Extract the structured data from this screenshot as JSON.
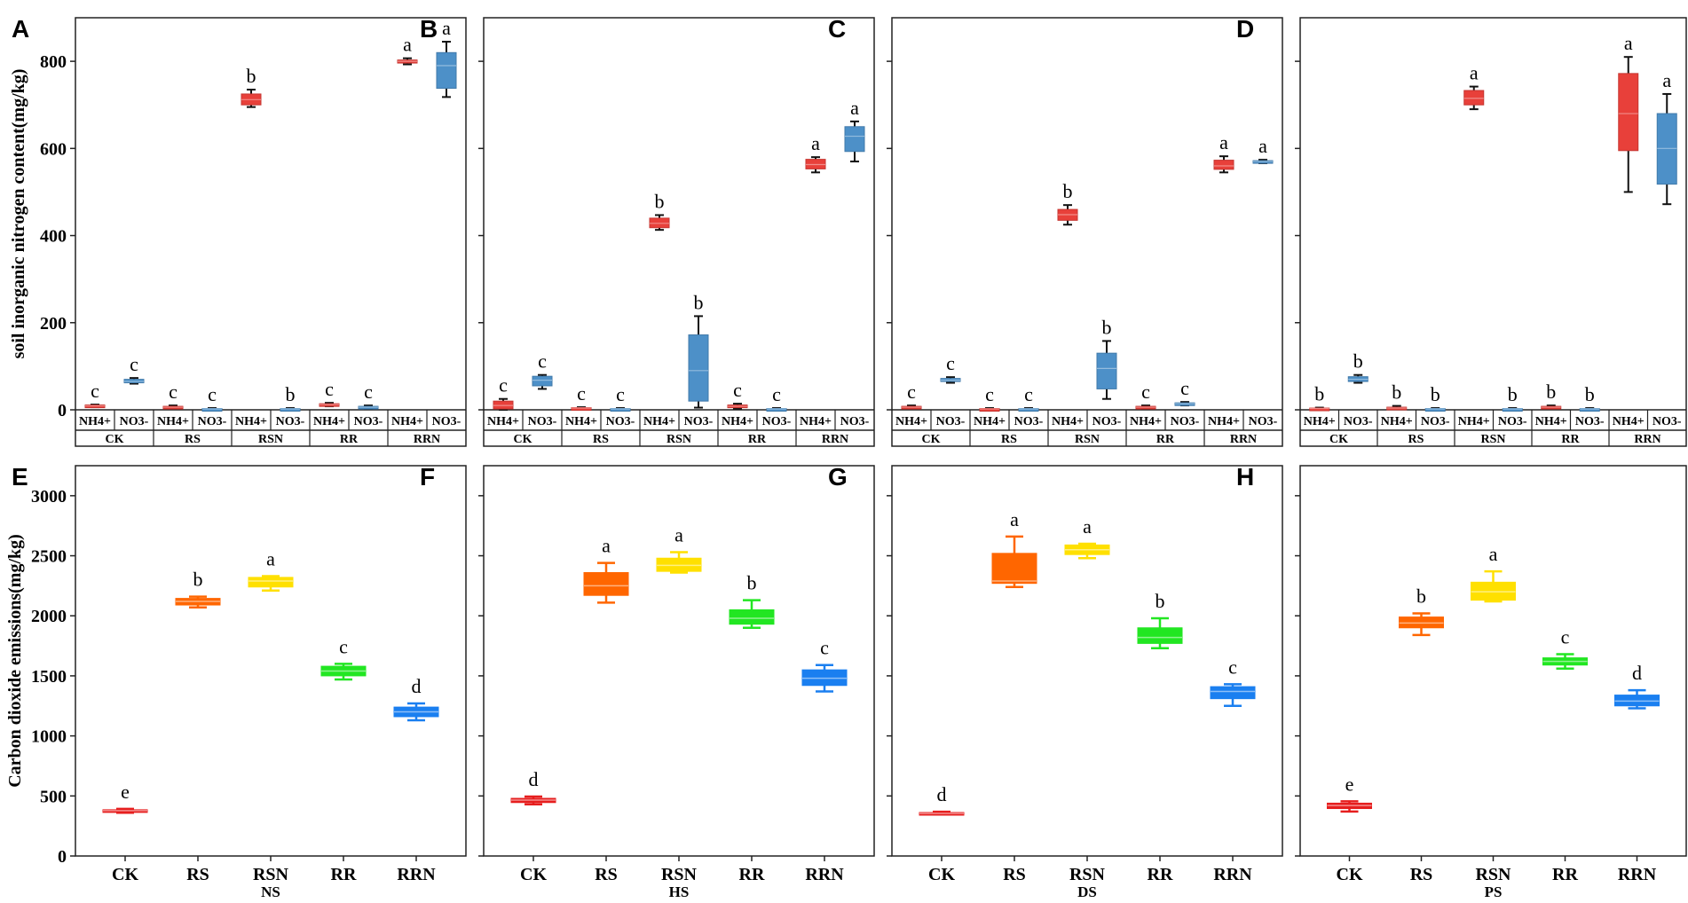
{
  "figure": {
    "panel_letters": [
      "A",
      "B",
      "C",
      "D",
      "E",
      "F",
      "G",
      "H"
    ],
    "colors": {
      "nh4": "#e8403a",
      "no3": "#4d90c8",
      "CK": "#e61e1e",
      "RS": "#ff6600",
      "RSN": "#ffe000",
      "RR": "#22e622",
      "RRN": "#1a7ff0"
    }
  },
  "chart_data": [
    {
      "type": "box",
      "panel": "A",
      "ylabel": "soil inorganic nitrogen content(mg/kg)",
      "xlabel": "",
      "ylim": [
        0,
        900
      ],
      "yticks": [
        0,
        200,
        400,
        600,
        800
      ],
      "groups": [
        "CK",
        "RS",
        "RSN",
        "RR",
        "RRN"
      ],
      "subcategories": [
        "NH4+",
        "NO3-"
      ],
      "boxes": [
        {
          "group": "CK",
          "sub": "NH4+",
          "min": 6,
          "q1": 8,
          "median": 9,
          "q3": 11,
          "max": 12,
          "label": "c"
        },
        {
          "group": "CK",
          "sub": "NO3-",
          "min": 60,
          "q1": 62,
          "median": 65,
          "q3": 70,
          "max": 73,
          "label": "c"
        },
        {
          "group": "RS",
          "sub": "NH4+",
          "min": 3,
          "q1": 5,
          "median": 6,
          "q3": 8,
          "max": 10,
          "label": "c"
        },
        {
          "group": "RS",
          "sub": "NO3-",
          "min": 0,
          "q1": 1,
          "median": 2,
          "q3": 3,
          "max": 4,
          "label": "c"
        },
        {
          "group": "RSN",
          "sub": "NH4+",
          "min": 695,
          "q1": 700,
          "median": 712,
          "q3": 725,
          "max": 735,
          "label": "b"
        },
        {
          "group": "RSN",
          "sub": "NO3-",
          "min": 0,
          "q1": 1,
          "median": 2,
          "q3": 3,
          "max": 4,
          "label": "b"
        },
        {
          "group": "RR",
          "sub": "NH4+",
          "min": 8,
          "q1": 10,
          "median": 12,
          "q3": 14,
          "max": 16,
          "label": "c"
        },
        {
          "group": "RR",
          "sub": "NO3-",
          "min": 2,
          "q1": 4,
          "median": 6,
          "q3": 8,
          "max": 10,
          "label": "c"
        },
        {
          "group": "RRN",
          "sub": "NH4+",
          "min": 793,
          "q1": 796,
          "median": 800,
          "q3": 803,
          "max": 807,
          "label": "a"
        },
        {
          "group": "RRN",
          "sub": "NO3-",
          "min": 718,
          "q1": 738,
          "median": 790,
          "q3": 820,
          "max": 845,
          "label": "a"
        }
      ]
    },
    {
      "type": "box",
      "panel": "B",
      "ylim": [
        0,
        900
      ],
      "yticks": [
        0,
        200,
        400,
        600,
        800
      ],
      "groups": [
        "CK",
        "RS",
        "RSN",
        "RR",
        "RRN"
      ],
      "subcategories": [
        "NH4+",
        "NO3-"
      ],
      "boxes": [
        {
          "group": "CK",
          "sub": "NH4+",
          "min": 0,
          "q1": 2,
          "median": 10,
          "q3": 20,
          "max": 25,
          "label": "c"
        },
        {
          "group": "CK",
          "sub": "NO3-",
          "min": 48,
          "q1": 55,
          "median": 68,
          "q3": 77,
          "max": 80,
          "label": "c"
        },
        {
          "group": "RS",
          "sub": "NH4+",
          "min": 2,
          "q1": 3,
          "median": 4,
          "q3": 5,
          "max": 6,
          "label": "c"
        },
        {
          "group": "RS",
          "sub": "NO3-",
          "min": 0,
          "q1": 1,
          "median": 2,
          "q3": 3,
          "max": 4,
          "label": "c"
        },
        {
          "group": "RSN",
          "sub": "NH4+",
          "min": 413,
          "q1": 418,
          "median": 428,
          "q3": 440,
          "max": 447,
          "label": "b"
        },
        {
          "group": "RSN",
          "sub": "NO3-",
          "min": 5,
          "q1": 20,
          "median": 90,
          "q3": 172,
          "max": 215,
          "label": "b"
        },
        {
          "group": "RR",
          "sub": "NH4+",
          "min": 3,
          "q1": 5,
          "median": 8,
          "q3": 11,
          "max": 14,
          "label": "c"
        },
        {
          "group": "RR",
          "sub": "NO3-",
          "min": 0,
          "q1": 1,
          "median": 2,
          "q3": 3,
          "max": 4,
          "label": "c"
        },
        {
          "group": "RRN",
          "sub": "NH4+",
          "min": 545,
          "q1": 553,
          "median": 563,
          "q3": 575,
          "max": 580,
          "label": "a"
        },
        {
          "group": "RRN",
          "sub": "NO3-",
          "min": 570,
          "q1": 593,
          "median": 628,
          "q3": 650,
          "max": 662,
          "label": "a"
        }
      ]
    },
    {
      "type": "box",
      "panel": "C",
      "ylim": [
        0,
        900
      ],
      "yticks": [
        0,
        200,
        400,
        600,
        800
      ],
      "groups": [
        "CK",
        "RS",
        "RSN",
        "RR",
        "RRN"
      ],
      "subcategories": [
        "NH4+",
        "NO3-"
      ],
      "boxes": [
        {
          "group": "CK",
          "sub": "NH4+",
          "min": 3,
          "q1": 5,
          "median": 6,
          "q3": 8,
          "max": 10,
          "label": "c"
        },
        {
          "group": "CK",
          "sub": "NO3-",
          "min": 62,
          "q1": 65,
          "median": 68,
          "q3": 72,
          "max": 75,
          "label": "c"
        },
        {
          "group": "RS",
          "sub": "NH4+",
          "min": 0,
          "q1": 1,
          "median": 2,
          "q3": 3,
          "max": 4,
          "label": "c"
        },
        {
          "group": "RS",
          "sub": "NO3-",
          "min": 0,
          "q1": 1,
          "median": 2,
          "q3": 3,
          "max": 4,
          "label": "c"
        },
        {
          "group": "RSN",
          "sub": "NH4+",
          "min": 425,
          "q1": 435,
          "median": 448,
          "q3": 460,
          "max": 470,
          "label": "b"
        },
        {
          "group": "RSN",
          "sub": "NO3-",
          "min": 25,
          "q1": 48,
          "median": 95,
          "q3": 130,
          "max": 158,
          "label": "b"
        },
        {
          "group": "RR",
          "sub": "NH4+",
          "min": 2,
          "q1": 4,
          "median": 6,
          "q3": 8,
          "max": 10,
          "label": "c"
        },
        {
          "group": "RR",
          "sub": "NO3-",
          "min": 10,
          "q1": 12,
          "median": 14,
          "q3": 16,
          "max": 18,
          "label": "c"
        },
        {
          "group": "RRN",
          "sub": "NH4+",
          "min": 545,
          "q1": 552,
          "median": 560,
          "q3": 573,
          "max": 582,
          "label": "a"
        },
        {
          "group": "RRN",
          "sub": "NO3-",
          "min": 566,
          "q1": 568,
          "median": 570,
          "q3": 572,
          "max": 574,
          "label": "a"
        }
      ]
    },
    {
      "type": "box",
      "panel": "D",
      "ylim": [
        0,
        900
      ],
      "yticks": [
        0,
        200,
        400,
        600,
        800
      ],
      "groups": [
        "CK",
        "RS",
        "RSN",
        "RR",
        "RRN"
      ],
      "subcategories": [
        "NH4+",
        "NO3-"
      ],
      "boxes": [
        {
          "group": "CK",
          "sub": "NH4+",
          "min": 1,
          "q1": 2,
          "median": 3,
          "q3": 4,
          "max": 5,
          "label": "b"
        },
        {
          "group": "CK",
          "sub": "NO3-",
          "min": 62,
          "q1": 65,
          "median": 70,
          "q3": 76,
          "max": 80,
          "label": "b"
        },
        {
          "group": "RS",
          "sub": "NH4+",
          "min": 2,
          "q1": 3,
          "median": 4,
          "q3": 6,
          "max": 9,
          "label": "b"
        },
        {
          "group": "RS",
          "sub": "NO3-",
          "min": 0,
          "q1": 1,
          "median": 2,
          "q3": 3,
          "max": 4,
          "label": "b"
        },
        {
          "group": "RSN",
          "sub": "NH4+",
          "min": 690,
          "q1": 700,
          "median": 715,
          "q3": 733,
          "max": 742,
          "label": "a"
        },
        {
          "group": "RSN",
          "sub": "NO3-",
          "min": 0,
          "q1": 1,
          "median": 2,
          "q3": 3,
          "max": 4,
          "label": "b"
        },
        {
          "group": "RR",
          "sub": "NH4+",
          "min": 4,
          "q1": 5,
          "median": 6,
          "q3": 8,
          "max": 10,
          "label": "b"
        },
        {
          "group": "RR",
          "sub": "NO3-",
          "min": 0,
          "q1": 1,
          "median": 2,
          "q3": 3,
          "max": 4,
          "label": "b"
        },
        {
          "group": "RRN",
          "sub": "NH4+",
          "min": 500,
          "q1": 595,
          "median": 680,
          "q3": 772,
          "max": 810,
          "label": "a"
        },
        {
          "group": "RRN",
          "sub": "NO3-",
          "min": 472,
          "q1": 518,
          "median": 600,
          "q3": 680,
          "max": 725,
          "label": "a"
        }
      ]
    },
    {
      "type": "box",
      "panel": "E",
      "ylabel": "Carbon dioxide emissions(mg/kg)",
      "xlabel": "NS",
      "ylim": [
        0,
        3000
      ],
      "yticks": [
        0,
        500,
        1000,
        1500,
        2000,
        2500,
        3000
      ],
      "categories": [
        "CK",
        "RS",
        "RSN",
        "RR",
        "RRN"
      ],
      "boxes": [
        {
          "cat": "CK",
          "min": 360,
          "q1": 370,
          "median": 378,
          "q3": 385,
          "max": 392,
          "label": "e"
        },
        {
          "cat": "RS",
          "min": 2070,
          "q1": 2090,
          "median": 2120,
          "q3": 2145,
          "max": 2160,
          "label": "b"
        },
        {
          "cat": "RSN",
          "min": 2210,
          "q1": 2240,
          "median": 2290,
          "q3": 2320,
          "max": 2330,
          "label": "a"
        },
        {
          "cat": "RR",
          "min": 1470,
          "q1": 1500,
          "median": 1540,
          "q3": 1580,
          "max": 1600,
          "label": "c"
        },
        {
          "cat": "RRN",
          "min": 1130,
          "q1": 1160,
          "median": 1200,
          "q3": 1240,
          "max": 1270,
          "label": "d"
        }
      ]
    },
    {
      "type": "box",
      "panel": "F",
      "xlabel": "HS",
      "ylim": [
        0,
        3000
      ],
      "yticks": [
        0,
        500,
        1000,
        1500,
        2000,
        2500,
        3000
      ],
      "categories": [
        "CK",
        "RS",
        "RSN",
        "RR",
        "RRN"
      ],
      "boxes": [
        {
          "cat": "CK",
          "min": 430,
          "q1": 445,
          "median": 465,
          "q3": 480,
          "max": 495,
          "label": "d"
        },
        {
          "cat": "RS",
          "min": 2110,
          "q1": 2170,
          "median": 2250,
          "q3": 2360,
          "max": 2440,
          "label": "a"
        },
        {
          "cat": "RSN",
          "min": 2360,
          "q1": 2370,
          "median": 2420,
          "q3": 2480,
          "max": 2530,
          "label": "a"
        },
        {
          "cat": "RR",
          "min": 1900,
          "q1": 1930,
          "median": 1980,
          "q3": 2050,
          "max": 2130,
          "label": "b"
        },
        {
          "cat": "RRN",
          "min": 1370,
          "q1": 1420,
          "median": 1480,
          "q3": 1550,
          "max": 1590,
          "label": "c"
        }
      ]
    },
    {
      "type": "box",
      "panel": "G",
      "xlabel": "DS",
      "ylim": [
        0,
        3000
      ],
      "yticks": [
        0,
        500,
        1000,
        1500,
        2000,
        2500,
        3000
      ],
      "categories": [
        "CK",
        "RS",
        "RSN",
        "RR",
        "RRN"
      ],
      "boxes": [
        {
          "cat": "CK",
          "min": 345,
          "q1": 350,
          "median": 355,
          "q3": 362,
          "max": 368,
          "label": "d"
        },
        {
          "cat": "RS",
          "min": 2240,
          "q1": 2270,
          "median": 2290,
          "q3": 2520,
          "max": 2660,
          "label": "a"
        },
        {
          "cat": "RSN",
          "min": 2480,
          "q1": 2510,
          "median": 2550,
          "q3": 2590,
          "max": 2600,
          "label": "a"
        },
        {
          "cat": "RR",
          "min": 1730,
          "q1": 1770,
          "median": 1820,
          "q3": 1900,
          "max": 1980,
          "label": "b"
        },
        {
          "cat": "RRN",
          "min": 1250,
          "q1": 1310,
          "median": 1370,
          "q3": 1410,
          "max": 1430,
          "label": "c"
        }
      ]
    },
    {
      "type": "box",
      "panel": "H",
      "xlabel": "PS",
      "ylim": [
        0,
        3000
      ],
      "yticks": [
        0,
        500,
        1000,
        1500,
        2000,
        2500,
        3000
      ],
      "categories": [
        "CK",
        "RS",
        "RSN",
        "RR",
        "RRN"
      ],
      "boxes": [
        {
          "cat": "CK",
          "min": 370,
          "q1": 395,
          "median": 420,
          "q3": 440,
          "max": 455,
          "label": "e"
        },
        {
          "cat": "RS",
          "min": 1840,
          "q1": 1900,
          "median": 1940,
          "q3": 1990,
          "max": 2020,
          "label": "b"
        },
        {
          "cat": "RSN",
          "min": 2120,
          "q1": 2130,
          "median": 2200,
          "q3": 2280,
          "max": 2370,
          "label": "a"
        },
        {
          "cat": "RR",
          "min": 1560,
          "q1": 1590,
          "median": 1620,
          "q3": 1650,
          "max": 1680,
          "label": "c"
        },
        {
          "cat": "RRN",
          "min": 1230,
          "q1": 1250,
          "median": 1290,
          "q3": 1340,
          "max": 1380,
          "label": "d"
        }
      ]
    }
  ]
}
